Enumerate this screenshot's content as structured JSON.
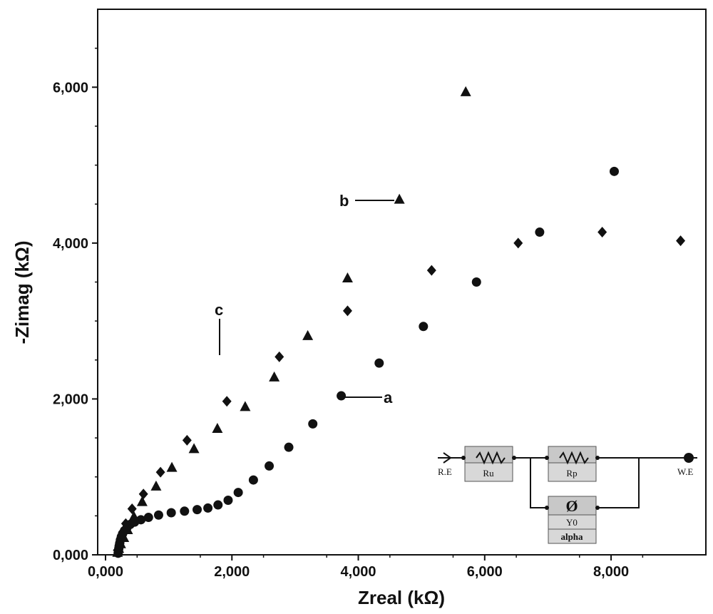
{
  "chart_data": {
    "type": "scatter",
    "title": "",
    "xlabel": "Zreal (kΩ)",
    "ylabel": "-Zimag (kΩ)",
    "xlim": [
      0,
      9500
    ],
    "ylim": [
      0,
      7000
    ],
    "x_ticks": [
      "0,000",
      "2,000",
      "4,000",
      "6,000",
      "8,000"
    ],
    "x_tick_values": [
      0,
      2000,
      4000,
      6000,
      8000
    ],
    "y_ticks": [
      "0,000",
      "2,000",
      "4,000",
      "6,000"
    ],
    "y_tick_values": [
      0,
      2000,
      4000,
      6000
    ],
    "grid": false,
    "series": [
      {
        "name": "a",
        "marker": "circle",
        "x": [
          200,
          205,
          210,
          215,
          225,
          235,
          250,
          270,
          300,
          340,
          390,
          460,
          560,
          680,
          840,
          1040,
          1250,
          1450,
          1620,
          1780,
          1940,
          2100,
          2340,
          2590,
          2900,
          3280,
          3730,
          4330,
          5030,
          5870,
          6870,
          8050
        ],
        "y": [
          20,
          50,
          80,
          110,
          150,
          190,
          230,
          270,
          310,
          350,
          390,
          420,
          450,
          480,
          510,
          540,
          560,
          580,
          600,
          640,
          700,
          800,
          960,
          1140,
          1380,
          1680,
          2040,
          2460,
          2930,
          3500,
          4140,
          4920
        ]
      },
      {
        "name": "b",
        "marker": "triangle",
        "x": [
          190,
          210,
          240,
          290,
          350,
          450,
          580,
          800,
          1050,
          1400,
          1770,
          2210,
          2670,
          3200,
          3830,
          4650,
          5700
        ],
        "y": [
          30,
          80,
          140,
          220,
          320,
          490,
          680,
          880,
          1120,
          1360,
          1620,
          1900,
          2280,
          2810,
          3550,
          4560,
          5940
        ]
      },
      {
        "name": "c",
        "marker": "diamond",
        "x": [
          190,
          220,
          260,
          320,
          420,
          600,
          870,
          1290,
          1920,
          2750,
          3830,
          5160,
          6530,
          7860,
          9100
        ],
        "y": [
          60,
          140,
          260,
          400,
          590,
          780,
          1060,
          1470,
          1970,
          2540,
          3130,
          3650,
          4000,
          4140,
          4030
        ]
      }
    ]
  },
  "annotations": {
    "a": "a",
    "b": "b",
    "c": "c"
  },
  "circuit": {
    "re_label": "R.E",
    "we_label": "W.E",
    "ru_label": "Ru",
    "rp_label": "Rp",
    "cpe_label": "Y0",
    "cpe_sub_label": "alpha",
    "cpe_symbol": "Ø"
  }
}
